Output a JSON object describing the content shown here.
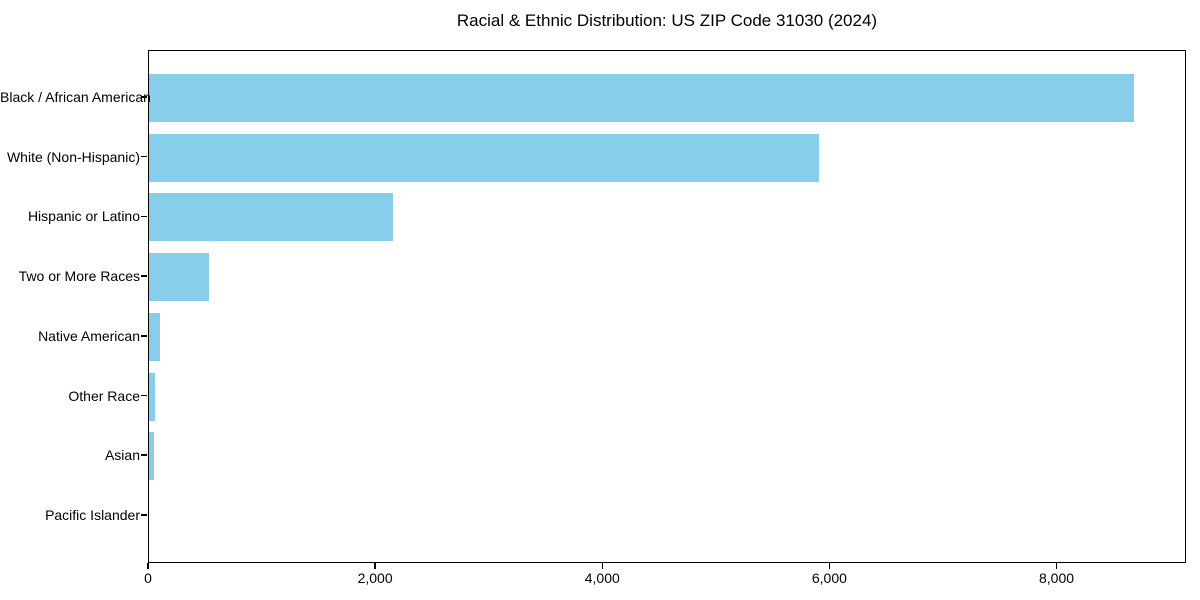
{
  "chart_data": {
    "type": "bar",
    "orientation": "horizontal",
    "title": "Racial & Ethnic Distribution: US ZIP Code 31030 (2024)",
    "categories": [
      "Black / African American",
      "White (Non-Hispanic)",
      "Hispanic or Latino",
      "Two or More Races",
      "Native American",
      "Other Race",
      "Asian",
      "Pacific Islander"
    ],
    "values": [
      8690,
      5910,
      2150,
      530,
      95,
      55,
      40,
      0
    ],
    "xlabel": "",
    "ylabel": "",
    "xlim": [
      0,
      9140
    ],
    "xticks": [
      0,
      2000,
      4000,
      6000,
      8000
    ],
    "xtick_labels": [
      "0",
      "2,000",
      "4,000",
      "6,000",
      "8,000"
    ],
    "grid": false,
    "legend": "none",
    "bar_color": "#87CEEB",
    "background_color": "#FFFFFF",
    "spine_color": "#000000",
    "text_color": "#000000"
  }
}
